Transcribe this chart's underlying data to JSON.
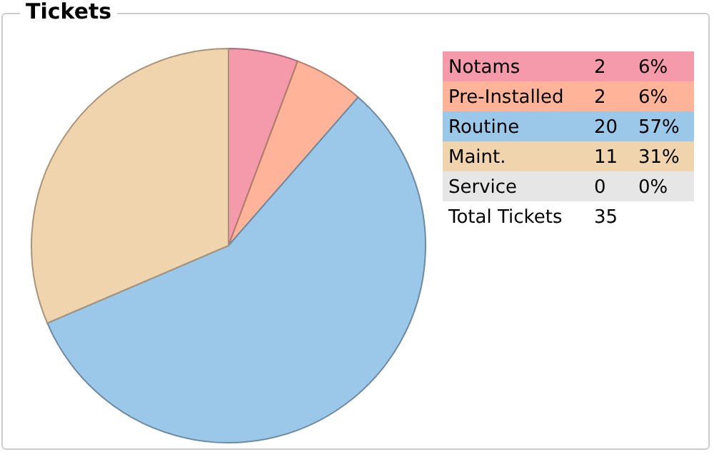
{
  "chart_data": {
    "type": "pie",
    "title": "Tickets",
    "categories": [
      "Notams",
      "Pre-Installed",
      "Routine",
      "Maint.",
      "Service"
    ],
    "values": [
      2,
      2,
      20,
      11,
      0
    ],
    "colors": [
      "#f49aaa",
      "#ffb399",
      "#9bc7e8",
      "#f0d4ae",
      "#e6e6e6"
    ],
    "value_labels": [
      "2",
      "2",
      "20",
      "11",
      "0"
    ],
    "annotations": [
      "6%",
      "6%",
      "57%",
      "31%",
      "0%",
      "Total Tickets",
      "35"
    ],
    "legend": "right"
  }
}
